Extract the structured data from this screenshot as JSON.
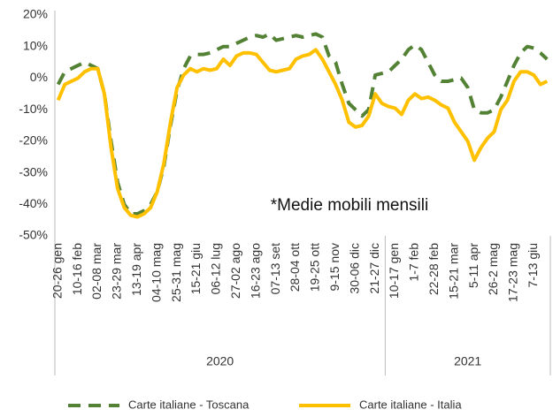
{
  "chart_data": {
    "type": "line",
    "annotation": "*Medie mobili mensili",
    "categories": [
      "20-26 gen",
      null,
      null,
      "10-16 feb",
      null,
      null,
      "02-08 mar",
      null,
      null,
      "23-29 mar",
      null,
      null,
      "13-19 apr",
      null,
      null,
      "04-10 mag",
      null,
      null,
      "25-31 mag",
      null,
      null,
      "15-21 giu",
      null,
      null,
      "06-12 lug",
      null,
      null,
      "27-02 ago",
      null,
      null,
      "16-23 ago",
      null,
      null,
      "07-13 set",
      null,
      null,
      "28-04 ott",
      null,
      null,
      "19-25 ott",
      null,
      null,
      "9-15 nov",
      null,
      null,
      "30-06 dic",
      null,
      null,
      "21-27 dic",
      null,
      null,
      "10-17 gen",
      null,
      null,
      "1-7 feb",
      null,
      null,
      "22-28 feb",
      null,
      null,
      "15-21 mar",
      null,
      null,
      "5-11 apr",
      null,
      null,
      "26-2 mag",
      null,
      null,
      "17-23 mag",
      null,
      null,
      "7-13 giu",
      null,
      null
    ],
    "x_groups": [
      {
        "label": "2020",
        "count": 50
      },
      {
        "label": "2021",
        "count": 25
      }
    ],
    "series": [
      {
        "name": "Carte italiane - Toscana",
        "color": "#548235",
        "dashed": true,
        "values": [
          -2,
          2,
          3,
          4,
          5,
          4,
          3,
          -5,
          -20,
          -33,
          -40,
          -43,
          -43,
          -42,
          -40,
          -36,
          -28,
          -15,
          -4,
          3,
          7,
          7.5,
          7.5,
          8,
          9,
          10,
          10,
          11,
          12,
          13,
          13.5,
          13,
          14,
          12,
          12.5,
          13,
          13.5,
          13,
          13.5,
          14,
          13,
          7,
          5,
          -2,
          -8,
          -10,
          -12,
          -10,
          1,
          1.5,
          2,
          4,
          6,
          9,
          10.5,
          9,
          5,
          1,
          -1,
          -1,
          -0.5,
          0,
          -3,
          -10,
          -11,
          -11,
          -10,
          -6,
          -1,
          4,
          8,
          10,
          9.5,
          8,
          6
        ]
      },
      {
        "name": "Carte italiane - Italia",
        "color": "#ffc000",
        "dashed": false,
        "values": [
          -7,
          -2,
          -1,
          0,
          2,
          3,
          3,
          -5,
          -22,
          -35,
          -41,
          -43.5,
          -44,
          -43,
          -41,
          -36,
          -27,
          -14,
          -3,
          1,
          3,
          2,
          3,
          2.5,
          3,
          6,
          4,
          7,
          8,
          8,
          7.5,
          5,
          2.5,
          2,
          2.5,
          3,
          6,
          7,
          7.5,
          9,
          6,
          2,
          -2,
          -7,
          -14,
          -15.5,
          -15,
          -12,
          -5,
          -8,
          -9,
          -9.5,
          -11.5,
          -7,
          -5,
          -6.5,
          -6,
          -7,
          -8.5,
          -9.5,
          -14,
          -17,
          -20,
          -26,
          -22,
          -19,
          -17,
          -10,
          -7,
          -1,
          2,
          2,
          1,
          -2,
          -1
        ]
      }
    ],
    "ylim": [
      -50,
      20
    ],
    "yticks": [
      {
        "value": -50,
        "label": "-50%"
      },
      {
        "value": -40,
        "label": "-40%"
      },
      {
        "value": -30,
        "label": "-30%"
      },
      {
        "value": -20,
        "label": "-20%"
      },
      {
        "value": -10,
        "label": "-10%"
      },
      {
        "value": 0,
        "label": "0%"
      },
      {
        "value": 10,
        "label": "10%"
      },
      {
        "value": 20,
        "label": "20%"
      }
    ],
    "grid": false,
    "legend": "bottom"
  }
}
